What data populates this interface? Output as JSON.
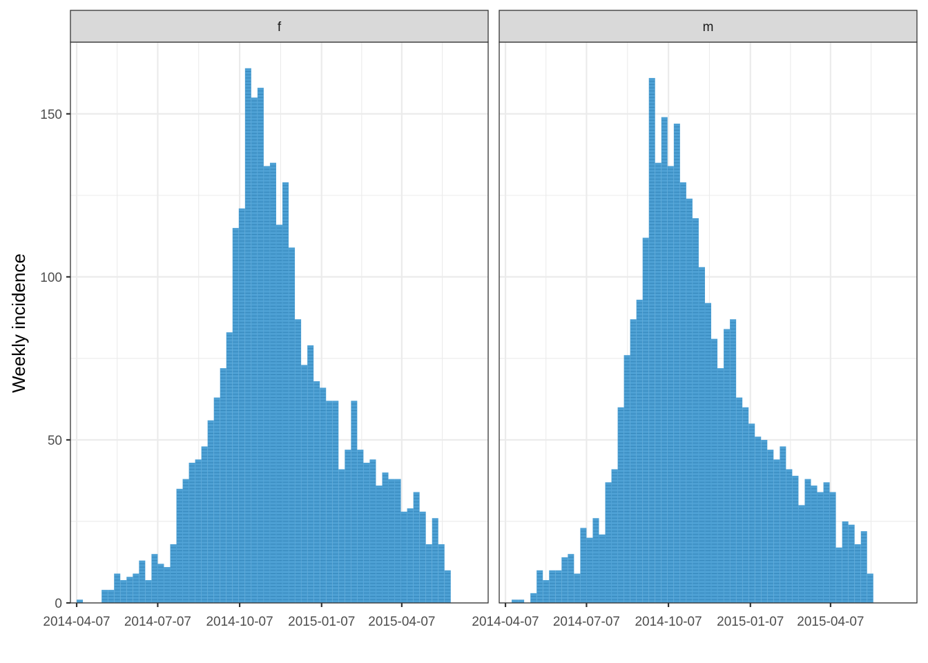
{
  "chart_data": {
    "type": "bar",
    "subtype": "stacked weekly incidence histogram (epicurve), faceted",
    "title": "",
    "xlabel": "",
    "ylabel": "Weekly incidence",
    "ylim": [
      0,
      172
    ],
    "y_ticks": [
      0,
      50,
      100,
      150
    ],
    "x_tick_labels": [
      "2014-04-07",
      "2014-07-07",
      "2014-10-07",
      "2015-01-07",
      "2015-04-07"
    ],
    "x_tick_dates": [
      "2014-04-07",
      "2014-07-07",
      "2014-10-07",
      "2015-01-07",
      "2015-04-07"
    ],
    "x_range": [
      "2014-03-31",
      "2015-07-13"
    ],
    "bin_width_days": 7,
    "first_bin_start": "2014-04-07",
    "fill_color": "#3a96cf",
    "grid": true,
    "legend": "none",
    "facets": [
      {
        "strip_label": "f",
        "values": [
          1,
          0,
          0,
          0,
          4,
          4,
          9,
          7,
          8,
          9,
          13,
          7,
          15,
          12,
          11,
          18,
          35,
          38,
          43,
          44,
          48,
          56,
          63,
          72,
          83,
          115,
          121,
          164,
          155,
          158,
          134,
          135,
          116,
          129,
          109,
          87,
          73,
          79,
          68,
          66,
          62,
          62,
          41,
          47,
          62,
          47,
          43,
          44,
          36,
          40,
          38,
          38,
          28,
          29,
          34,
          28,
          18,
          26,
          18,
          10
        ]
      },
      {
        "strip_label": "m",
        "values": [
          0,
          1,
          1,
          0,
          3,
          10,
          7,
          10,
          10,
          14,
          15,
          9,
          23,
          20,
          26,
          21,
          37,
          41,
          60,
          76,
          87,
          93,
          112,
          161,
          135,
          149,
          134,
          147,
          129,
          124,
          118,
          103,
          92,
          81,
          72,
          84,
          87,
          63,
          60,
          55,
          51,
          50,
          47,
          44,
          48,
          41,
          39,
          30,
          38,
          36,
          34,
          37,
          34,
          17,
          25,
          24,
          18,
          22,
          9
        ]
      }
    ]
  }
}
